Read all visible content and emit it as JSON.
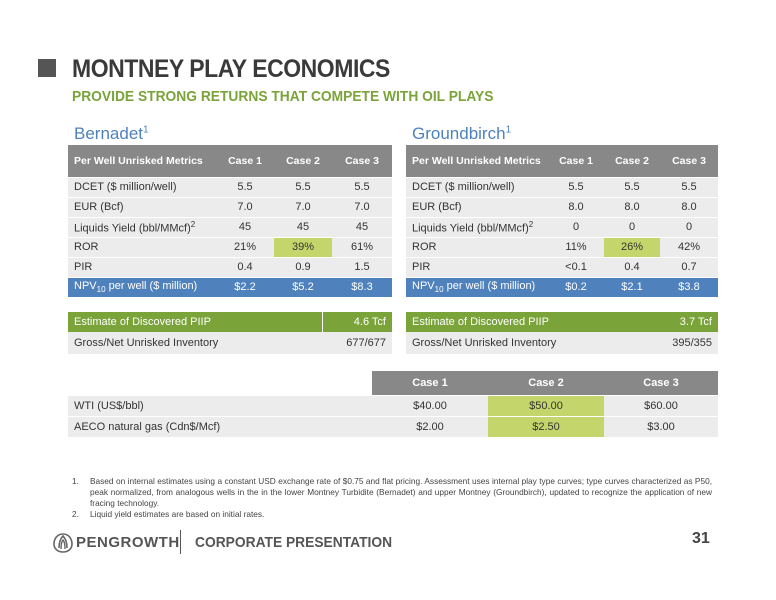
{
  "header": {
    "title": "MONTNEY PLAY ECONOMICS",
    "subtitle": "PROVIDE STRONG RETURNS THAT COMPETE WITH OIL PLAYS"
  },
  "bernadet": {
    "title": "Bernadet",
    "title_sup": "1",
    "headers": [
      "Per Well Unrisked Metrics",
      "Case 1",
      "Case 2",
      "Case 3"
    ],
    "rows": [
      {
        "label": "DCET ($ million/well)",
        "sup": "",
        "c1": "5.5",
        "c2": "5.5",
        "c3": "5.5"
      },
      {
        "label": "EUR (Bcf)",
        "sup": "",
        "c1": "7.0",
        "c2": "7.0",
        "c3": "7.0"
      },
      {
        "label": "Liquids Yield (bbl/MMcf)",
        "sup": "2",
        "c1": "45",
        "c2": "45",
        "c3": "45"
      },
      {
        "label": "ROR",
        "sup": "",
        "c1": "21%",
        "c2": "39%",
        "c3": "61%"
      },
      {
        "label": "PIR",
        "sup": "",
        "c1": "0.4",
        "c2": "0.9",
        "c3": "1.5"
      }
    ],
    "npv": {
      "label_pre": "NPV",
      "label_sub": "10",
      "label_post": " per well ($ million)",
      "c1": "$2.2",
      "c2": "$5.2",
      "c3": "$8.3"
    },
    "piip_label": "Estimate of Discovered PIIP",
    "piip_value": "4.6 Tcf",
    "inventory_label": "Gross/Net Unrisked Inventory",
    "inventory_value": "677/677"
  },
  "groundbirch": {
    "title": "Groundbirch",
    "title_sup": "1",
    "headers": [
      "Per Well Unrisked Metrics",
      "Case 1",
      "Case 2",
      "Case 3"
    ],
    "rows": [
      {
        "label": "DCET ($ million/well)",
        "sup": "",
        "c1": "5.5",
        "c2": "5.5",
        "c3": "5.5"
      },
      {
        "label": "EUR (Bcf)",
        "sup": "",
        "c1": "8.0",
        "c2": "8.0",
        "c3": "8.0"
      },
      {
        "label": "Liquids Yield (bbl/MMcf)",
        "sup": "2",
        "c1": "0",
        "c2": "0",
        "c3": "0"
      },
      {
        "label": "ROR",
        "sup": "",
        "c1": "11%",
        "c2": "26%",
        "c3": "42%"
      },
      {
        "label": "PIR",
        "sup": "",
        "c1": "<0.1",
        "c2": "0.4",
        "c3": "0.7"
      }
    ],
    "npv": {
      "label_pre": "NPV",
      "label_sub": "10",
      "label_post": " per well ($ million)",
      "c1": "$0.2",
      "c2": "$2.1",
      "c3": "$3.8"
    },
    "piip_label": "Estimate of Discovered PIIP",
    "piip_value": "3.7 Tcf",
    "inventory_label": "Gross/Net  Unrisked Inventory",
    "inventory_value": "395/355"
  },
  "prices": {
    "headers": [
      "Case 1",
      "Case 2",
      "Case 3"
    ],
    "rows": [
      {
        "label": "WTI (US$/bbl)",
        "c1": "$40.00",
        "c2": "$50.00",
        "c3": "$60.00"
      },
      {
        "label": "AECO natural gas (Cdn$/Mcf)",
        "c1": "$2.00",
        "c2": "$2.50",
        "c3": "$3.00"
      }
    ]
  },
  "footnotes": [
    {
      "num": "1.",
      "text": "Based on internal estimates using a constant USD exchange rate of $0.75 and flat pricing. Assessment uses internal play type curves; type curves characterized as P50, peak normalized, from analogous wells in the in the lower Montney Turbidite (Bernadet) and upper Montney (Groundbirch), updated to recognize the application of new fracing technology."
    },
    {
      "num": "2.",
      "text": "Liquid yield estimates are based on initial rates."
    }
  ],
  "footer": {
    "logo_text": "PENGROWTH",
    "presentation": "CORPORATE PRESENTATION",
    "page_number": "31"
  },
  "colors": {
    "accent_green": "#7aa33a",
    "accent_blue": "#4f81bd",
    "highlight": "#c4d66b",
    "header_grey": "#888888"
  }
}
